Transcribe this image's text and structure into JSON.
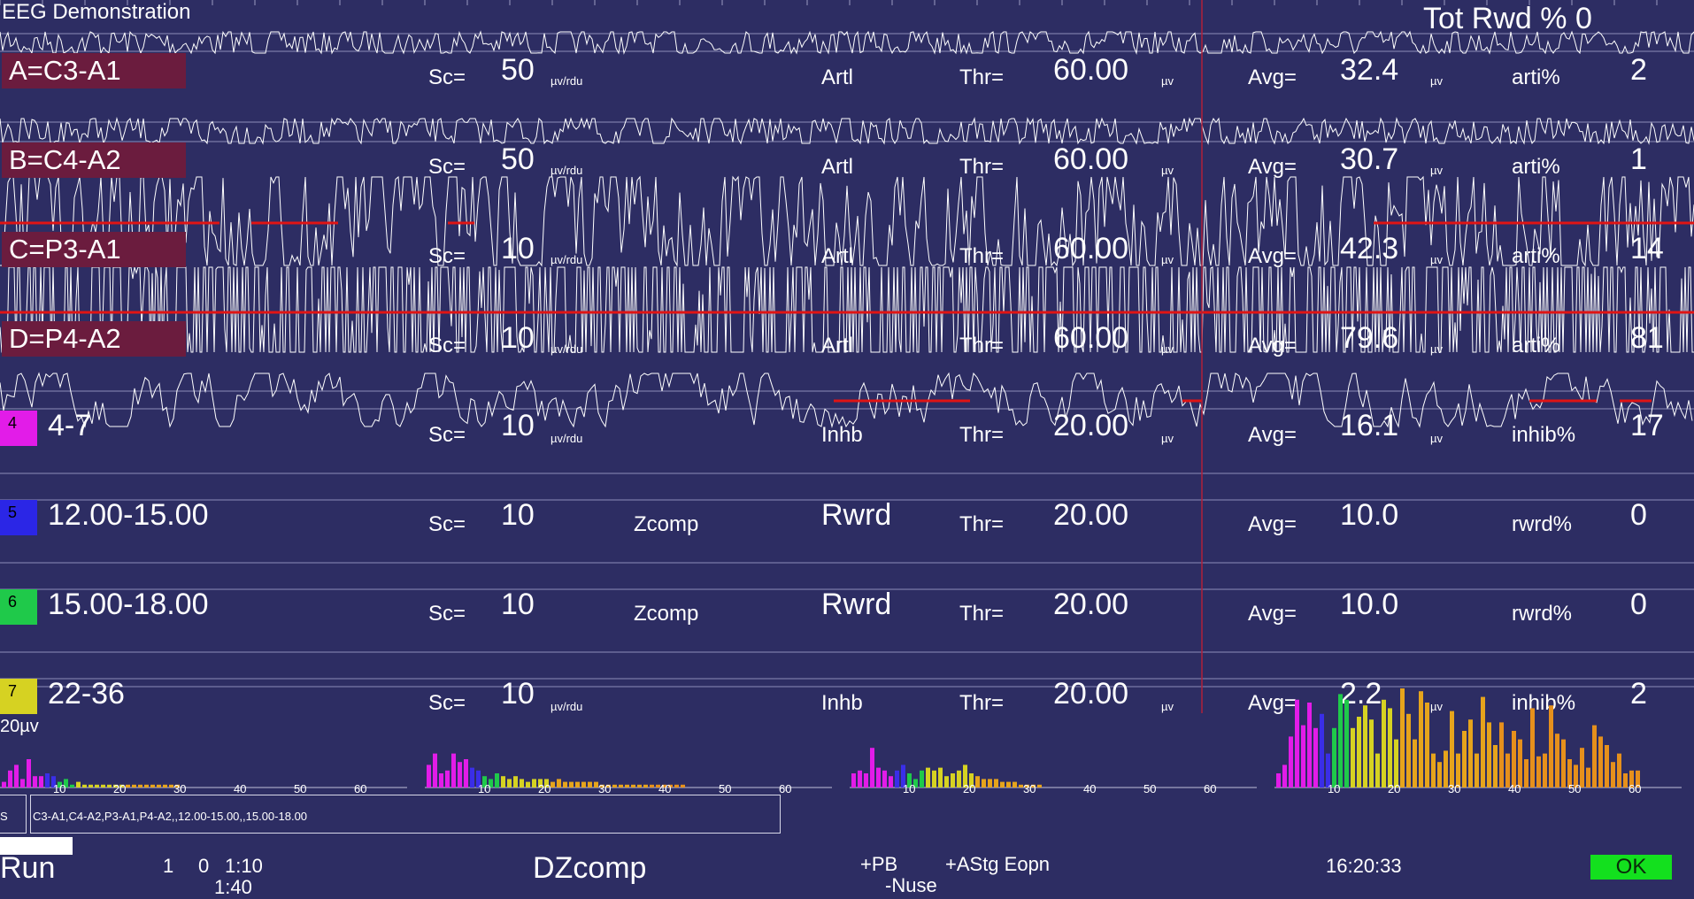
{
  "app": {
    "title": "EEG Demonstration",
    "tot_rwd": "Tot Rwd %  0"
  },
  "labels": {
    "sc": "Sc=",
    "thr": "Thr=",
    "avg": "Avg=",
    "unit_scale": "µv/rdu",
    "unit_v": "µv"
  },
  "channels": [
    {
      "name": "A=C3-A1",
      "scale": "50",
      "mode": "Artl",
      "thr": "60.00",
      "avg": "32.4",
      "pct_label": "arti%",
      "pct": "2"
    },
    {
      "name": "B=C4-A2",
      "scale": "50",
      "mode": "Artl",
      "thr": "60.00",
      "avg": "30.7",
      "pct_label": "arti%",
      "pct": "1"
    },
    {
      "name": "C=P3-A1",
      "scale": "10",
      "mode": "Artl",
      "thr": "60.00",
      "avg": "42.3",
      "pct_label": "arti%",
      "pct": "14"
    },
    {
      "name": "D=P4-A2",
      "scale": "10",
      "mode": "Artl",
      "thr": "60.00",
      "avg": "79.6",
      "pct_label": "arti%",
      "pct": "81"
    }
  ],
  "bands": [
    {
      "num": "4",
      "color": "#e21ce8",
      "range": "4-7",
      "scale": "10",
      "comp": "",
      "mode": "Inhb",
      "thr": "20.00",
      "avg": "16.1",
      "pct_label": "inhib%",
      "pct": "17",
      "unit": true
    },
    {
      "num": "5",
      "color": "#2b26e6",
      "range": "12.00-15.00",
      "scale": "10",
      "comp": "Zcomp",
      "mode": "Rwrd",
      "thr": "20.00",
      "avg": "10.0",
      "pct_label": "rwrd%",
      "pct": "0",
      "unit": false
    },
    {
      "num": "6",
      "color": "#1fc94a",
      "range": "15.00-18.00",
      "scale": "10",
      "comp": "Zcomp",
      "mode": "Rwrd",
      "thr": "20.00",
      "avg": "10.0",
      "pct_label": "rwrd%",
      "pct": "0",
      "unit": false
    },
    {
      "num": "7",
      "color": "#d6d222",
      "range": "22-36",
      "scale": "10",
      "comp": "",
      "mode": "Inhb",
      "thr": "20.00",
      "avg": "2.2",
      "pct_label": "inhib%",
      "pct": "2",
      "unit": true
    }
  ],
  "spectrum": {
    "scale_label": "20µv",
    "axis_ticks": [
      "10",
      "20",
      "30",
      "40",
      "50",
      "60"
    ],
    "panels": [
      [
        2,
        6,
        8,
        3,
        10,
        4,
        4,
        5,
        4,
        2,
        3,
        1,
        2,
        1,
        1,
        1,
        1,
        1,
        1,
        1,
        1,
        1,
        1,
        1,
        1,
        1,
        1,
        1,
        1,
        0,
        0,
        0,
        0,
        0,
        0,
        0,
        0,
        0,
        0,
        0,
        0,
        0,
        0,
        0,
        0,
        0,
        0,
        0,
        0,
        0,
        0,
        0,
        0,
        0
      ],
      [
        8,
        12,
        5,
        6,
        12,
        9,
        10,
        7,
        6,
        4,
        3,
        5,
        4,
        3,
        4,
        3,
        2,
        3,
        3,
        3,
        2,
        3,
        2,
        2,
        2,
        2,
        2,
        2,
        1,
        1,
        1,
        1,
        1,
        1,
        1,
        1,
        1,
        1,
        1,
        1,
        1,
        1,
        0,
        0,
        0,
        0,
        0,
        0,
        0,
        0,
        0,
        0,
        0,
        0
      ],
      [
        5,
        6,
        5,
        14,
        7,
        6,
        4,
        6,
        8,
        5,
        3,
        6,
        7,
        6,
        7,
        4,
        5,
        6,
        8,
        5,
        4,
        3,
        3,
        3,
        2,
        2,
        2,
        1,
        1,
        1,
        1,
        0,
        0,
        0,
        0,
        0,
        0,
        0,
        0,
        0,
        0,
        0,
        0,
        0,
        0,
        0,
        0,
        0,
        0,
        0,
        0,
        0,
        0,
        0
      ],
      [
        5,
        8,
        18,
        31,
        22,
        30,
        21,
        26,
        12,
        21,
        33,
        31,
        21,
        25,
        29,
        24,
        12,
        31,
        28,
        17,
        35,
        26,
        17,
        34,
        30,
        12,
        9,
        13,
        27,
        12,
        20,
        24,
        12,
        32,
        23,
        15,
        23,
        12,
        20,
        17,
        10,
        28,
        11,
        12,
        29,
        19,
        17,
        10,
        8,
        14,
        7,
        22,
        18,
        15,
        9,
        12,
        5,
        6,
        6
      ]
    ]
  },
  "montage": {
    "s": "S",
    "path": "C3-A1,C4-A2,P3-A1,P4-A2,,12.00-15.00,,15.00-18.00"
  },
  "status": {
    "run": "Run",
    "c1": "1",
    "c2": "0",
    "time_a": "1:10",
    "time_b": "1:40",
    "protocol": "DZcomp",
    "pb": "+PB",
    "nuse": "-Nuse",
    "astg": "+AStg Eopn",
    "clock": "16:20:33",
    "ok": "OK"
  },
  "colors": {
    "bg": "#2d2d63",
    "label_bg": "#6b1c3e",
    "trace": "#ffffff",
    "threshold": "#e01414",
    "cursor": "#b0203a",
    "ok": "#13e01e"
  }
}
